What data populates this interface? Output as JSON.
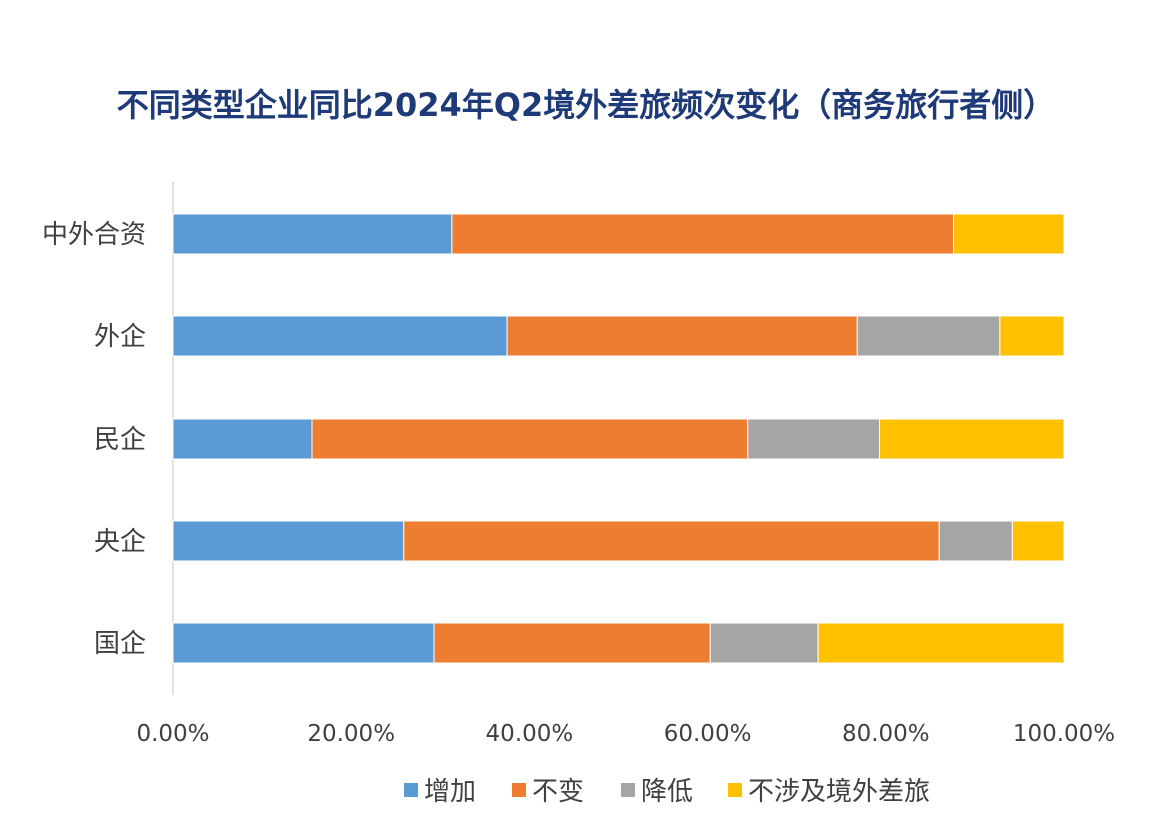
{
  "chart_data": {
    "type": "bar",
    "orientation": "horizontal",
    "stacked": true,
    "title": "不同类型企业同比2024年Q2境外差旅频次变化（商务旅行者侧）",
    "categories": [
      "中外合资",
      "外企",
      "民企",
      "央企",
      "国企"
    ],
    "series": [
      {
        "name": "增加",
        "color": "#5b9bd5",
        "values": [
          31.3,
          37.5,
          15.6,
          25.9,
          29.3
        ]
      },
      {
        "name": "不变",
        "color": "#ed7d31",
        "values": [
          56.3,
          39.3,
          48.9,
          60.1,
          31.0
        ]
      },
      {
        "name": "降低",
        "color": "#a5a5a5",
        "values": [
          0.0,
          16.0,
          14.8,
          8.2,
          12.1
        ]
      },
      {
        "name": "不涉及境外差旅",
        "color": "#ffc000",
        "values": [
          12.4,
          7.2,
          20.7,
          5.8,
          27.6
        ]
      }
    ],
    "xlim": [
      0,
      100
    ],
    "xticks": [
      "0.00%",
      "20.00%",
      "40.00%",
      "60.00%",
      "80.00%",
      "100.00%"
    ],
    "xlabel": "",
    "ylabel": "",
    "grid": false,
    "legend": "bottom"
  }
}
